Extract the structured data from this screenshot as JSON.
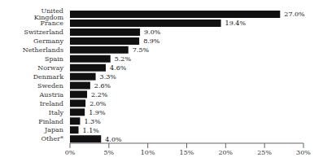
{
  "chart_data": {
    "type": "bar",
    "orientation": "horizontal",
    "categories": [
      "Other*",
      "Japan",
      "Finland",
      "Italy",
      "Ireland",
      "Austria",
      "Sweden",
      "Denmark",
      "Norway",
      "Spain",
      "Netherlands",
      "Germany",
      "Switzerland",
      "France",
      "United Kingdom"
    ],
    "values": [
      4.0,
      1.1,
      1.3,
      1.9,
      2.0,
      2.2,
      2.6,
      3.3,
      4.6,
      5.2,
      7.5,
      8.9,
      9.0,
      19.4,
      27.0
    ],
    "value_labels": [
      "4.0%",
      "1.1%",
      "1.3%",
      "1.9%",
      "2.0%",
      "2.2%",
      "2.6%",
      "3.3%",
      "4.6%",
      "5.2%",
      "7.5%",
      "8.9%",
      "9.0%",
      "19.4%",
      "27.0%"
    ],
    "data_labels": true,
    "color": "#111111",
    "xlim": [
      0,
      30
    ],
    "xticks": [
      {
        "value": 0,
        "label": "0%"
      },
      {
        "value": 5,
        "label": "5%"
      },
      {
        "value": 10,
        "label": "10%"
      },
      {
        "value": 15,
        "label": "15%"
      },
      {
        "value": 20,
        "label": "20%"
      },
      {
        "value": 25,
        "label": "25%"
      },
      {
        "value": 30,
        "label": "30%"
      }
    ],
    "grid": false
  }
}
